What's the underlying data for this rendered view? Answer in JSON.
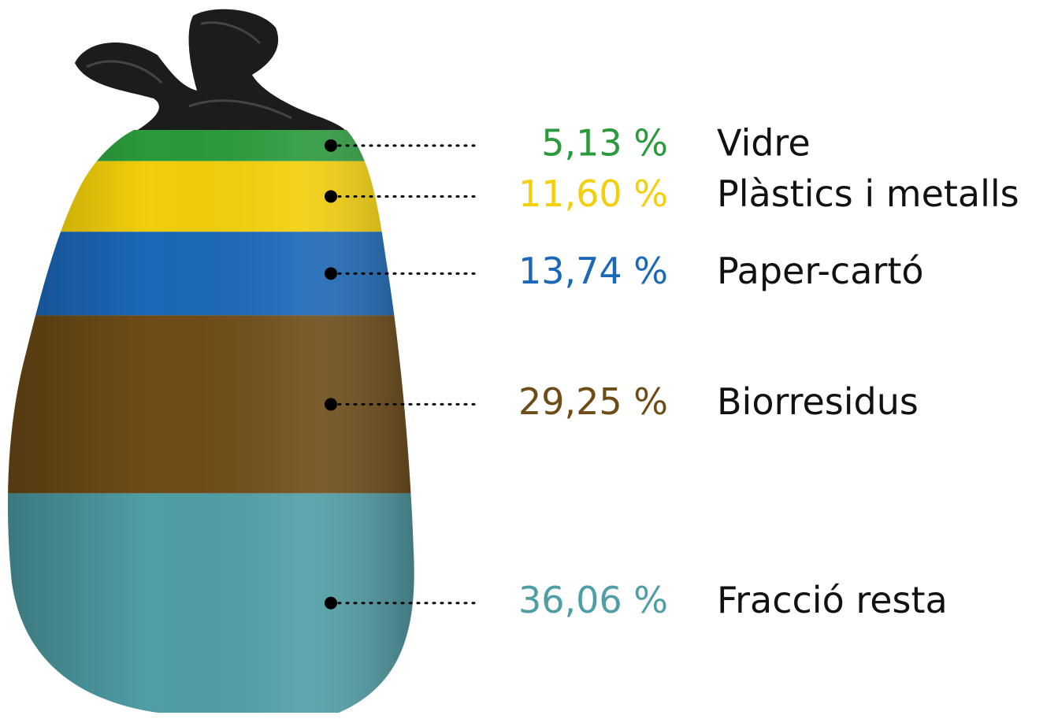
{
  "chart_data": {
    "type": "stacked",
    "categories": [
      "Vidre",
      "Plàstics i metalls",
      "Paper-cartó",
      "Biorresidus",
      "Fracció resta"
    ],
    "values": [
      5.13,
      11.6,
      13.74,
      29.25,
      36.06
    ],
    "value_labels": [
      "5,13 %",
      "11,60 %",
      "13,74 %",
      "29,25 %",
      "36,06 %"
    ],
    "colors": [
      "#2b9a3c",
      "#f2cf0a",
      "#1b68b8",
      "#6e4c17",
      "#4f9ea6"
    ]
  }
}
